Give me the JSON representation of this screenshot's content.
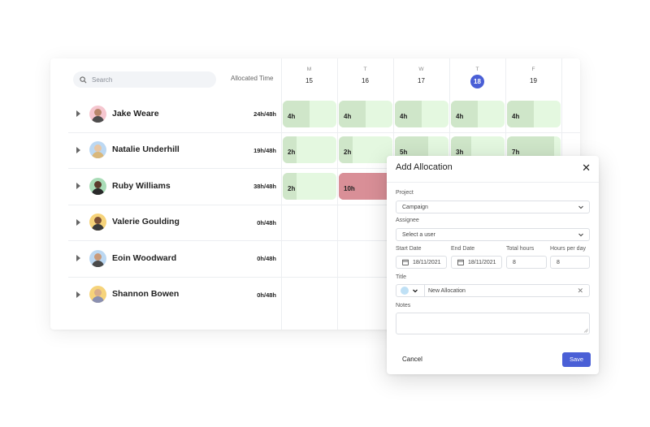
{
  "search": {
    "placeholder": "Search"
  },
  "header": {
    "allocated_label": "Allocated Time"
  },
  "days": [
    {
      "dow": "M",
      "num": "15",
      "today": false
    },
    {
      "dow": "T",
      "num": "16",
      "today": false
    },
    {
      "dow": "W",
      "num": "17",
      "today": false
    },
    {
      "dow": "T",
      "num": "18",
      "today": true
    },
    {
      "dow": "F",
      "num": "19",
      "today": false
    }
  ],
  "people": [
    {
      "name": "Jake Weare",
      "hours": "24h/48h",
      "avatar_bg": "#f5c6cf",
      "skin": "#b8866b",
      "shirt": "#4d4d4d",
      "blocks": [
        {
          "label": "4h",
          "fill": 0.5
        },
        {
          "label": "4h",
          "fill": 0.5
        },
        {
          "label": "4h",
          "fill": 0.5
        },
        {
          "label": "4h",
          "fill": 0.5
        },
        {
          "label": "4h",
          "fill": 0.5
        }
      ]
    },
    {
      "name": "Natalie Underhill",
      "hours": "19h/48h",
      "avatar_bg": "#bcd8f2",
      "skin": "#e8c6a3",
      "shirt": "#d9b77a",
      "blocks": [
        {
          "label": "2h",
          "fill": 0.25
        },
        {
          "label": "2h",
          "fill": 0.25
        },
        {
          "label": "5h",
          "fill": 0.62
        },
        {
          "label": "3h",
          "fill": 0.38
        },
        {
          "label": "7h",
          "fill": 0.88
        }
      ]
    },
    {
      "name": "Ruby Williams",
      "hours": "38h/48h",
      "avatar_bg": "#a9dcb7",
      "skin": "#5b3a2b",
      "shirt": "#2a2a2a",
      "blocks": [
        {
          "label": "2h",
          "fill": 0.25
        },
        {
          "label": "10h",
          "fill": 1,
          "over": true
        }
      ]
    },
    {
      "name": "Valerie Goulding",
      "hours": "0h/48h",
      "avatar_bg": "#f6d37a",
      "skin": "#7a4e36",
      "shirt": "#3a3a3a",
      "blocks": []
    },
    {
      "name": "Eoin Woodward",
      "hours": "0h/48h",
      "avatar_bg": "#bcd8f2",
      "skin": "#c99a7a",
      "shirt": "#4a4a4a",
      "blocks": []
    },
    {
      "name": "Shannon Bowen",
      "hours": "0h/48h",
      "avatar_bg": "#f6d37a",
      "skin": "#d9ad8a",
      "shirt": "#8a8fb0",
      "blocks": []
    }
  ],
  "dialog": {
    "title": "Add Allocation",
    "close": "✕",
    "project_label": "Project",
    "project_value": "Campaign",
    "assignee_label": "Assignee",
    "assignee_placeholder": "Select a user",
    "start_label": "Start Date",
    "start_value": "18/11/2021",
    "end_label": "End Date",
    "end_value": "18/11/2021",
    "total_label": "Total hours",
    "total_value": "8",
    "perday_label": "Hours per day",
    "perday_value": "8",
    "title_label": "Title",
    "title_value": "New Allocation",
    "title_color": "#bfe0f5",
    "notes_label": "Notes",
    "cancel_label": "Cancel",
    "save_label": "Save"
  },
  "colors": {
    "accent": "#4a5fd6",
    "block_bg": "#e4f8e0",
    "block_fill": "#cfe6c9",
    "over": "#d98f97"
  }
}
